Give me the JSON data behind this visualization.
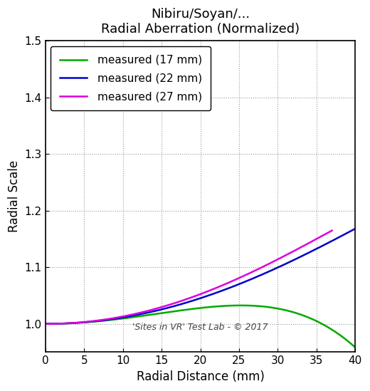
{
  "title_line1": "Nibiru/Soyan/...",
  "title_line2": "Radial Aberration (Normalized)",
  "xlabel": "Radial Distance (mm)",
  "ylabel": "Radial Scale",
  "xlim": [
    0,
    40
  ],
  "ylim": [
    0.95,
    1.5
  ],
  "yticks": [
    1.0,
    1.1,
    1.2,
    1.3,
    1.4,
    1.5
  ],
  "xticks": [
    0,
    5,
    10,
    15,
    20,
    25,
    30,
    35,
    40
  ],
  "watermark": "'Sites in VR' Test Lab - © 2017",
  "series": [
    {
      "label": "measured (17 mm)",
      "color": "#00aa00",
      "r_max": 40
    },
    {
      "label": "measured (22 mm)",
      "color": "#0000cc",
      "r_max": 40
    },
    {
      "label": "measured (27 mm)",
      "color": "#dd00dd",
      "r_max": 37
    }
  ],
  "background_color": "#ffffff",
  "grid_color": "#999999",
  "legend_fontsize": 11,
  "axis_fontsize": 12,
  "title_fontsize": 13,
  "line_width": 1.8
}
